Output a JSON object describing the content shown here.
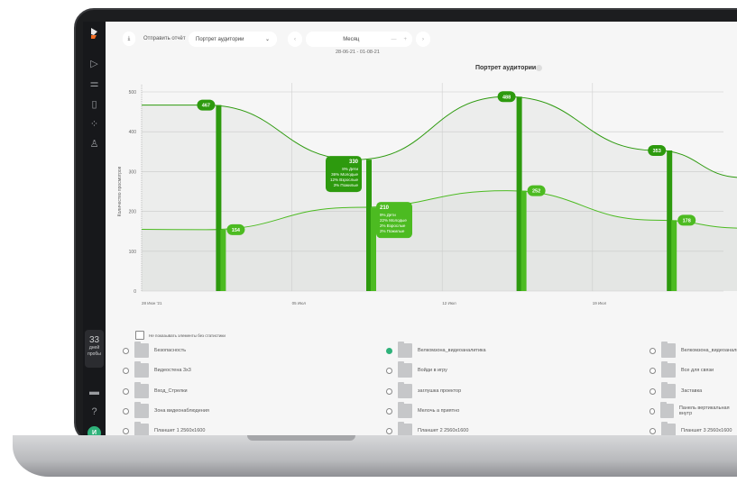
{
  "toolbar": {
    "send_report": "Отправить отчёт",
    "report_select": "Портрет аудитории",
    "period": "Месяц",
    "date_range": "28-06-21 - 01-08-21"
  },
  "sidebar": {
    "trial_days": "33",
    "trial_label": "дней пробы",
    "avatar": "И",
    "icons": [
      "logo",
      "play-icon",
      "filter-icon",
      "document-icon",
      "loading-icon",
      "user-icon",
      "monitor-icon",
      "help-icon"
    ]
  },
  "colors": {
    "dark_green": "#2d9a0e",
    "light_green": "#4cbb21",
    "accent": "#2fb27a"
  },
  "chart_data": {
    "type": "line",
    "title": "Портрет аудитории",
    "ylabel": "Количество просмотров",
    "ylim": [
      0,
      500
    ],
    "yticks": [
      "0",
      "100",
      "200",
      "300",
      "400",
      "500"
    ],
    "xticks": [
      {
        "date": "2021-06-28",
        "label": "28 Июн '21"
      },
      {
        "date": "2021-07-05",
        "label": "05 Июл"
      },
      {
        "date": "2021-07-12",
        "label": "12 Июл"
      },
      {
        "date": "2021-07-19",
        "label": "19 Июл"
      }
    ],
    "grid": true,
    "series": [
      {
        "color": "#2d9a0e",
        "points": [
          [
            "2021-06-28",
            467
          ],
          [
            "2021-07-01",
            467
          ],
          [
            "2021-07-08",
            330
          ],
          [
            "2021-07-15",
            488
          ],
          [
            "2021-07-22",
            353
          ],
          [
            "2021-07-26",
            285
          ]
        ]
      },
      {
        "color": "#4cbb21",
        "points": [
          [
            "2021-06-28",
            155
          ],
          [
            "2021-07-01",
            154
          ],
          [
            "2021-07-08",
            210
          ],
          [
            "2021-07-15",
            252
          ],
          [
            "2021-07-22",
            178
          ],
          [
            "2021-07-26",
            158
          ]
        ]
      }
    ],
    "bars": [
      {
        "date": "2021-07-01",
        "upper": 467,
        "lower": 154
      },
      {
        "date": "2021-07-08",
        "upper": 330,
        "lower": 210
      },
      {
        "date": "2021-07-15",
        "upper": 488,
        "lower": 252
      },
      {
        "date": "2021-07-22",
        "upper": 353,
        "lower": 178
      }
    ],
    "tooltips": [
      {
        "series": 0,
        "date": "2021-07-08",
        "value": "330",
        "lines": [
          "8% Дети",
          "36% Молодые",
          "12% Взрослые",
          "3% Пожилые"
        ]
      },
      {
        "series": 1,
        "date": "2021-07-08",
        "value": "210",
        "lines": [
          "9% Дети",
          "22% Молодые",
          "2% Взрослые",
          "2% Пожилые"
        ]
      }
    ]
  },
  "filter": {
    "hide_empty_label": "Не показывать элементы без статистики"
  },
  "items": [
    {
      "label": "Безопасность",
      "selected": false
    },
    {
      "label": "Велкомзона_видеоаналитика",
      "selected": true
    },
    {
      "label": "Велкомзона_видеоаналитика",
      "selected": false
    },
    {
      "label": "Видеостена 3х3",
      "selected": false
    },
    {
      "label": "Войди в игру",
      "selected": false
    },
    {
      "label": "Все для связи",
      "selected": false
    },
    {
      "label": "Вход_Стрелки",
      "selected": false
    },
    {
      "label": "заглушка проектор",
      "selected": false
    },
    {
      "label": "Заставка",
      "selected": false
    },
    {
      "label": "Зона видеонаблюдения",
      "selected": false
    },
    {
      "label": "Мелочь а приятно",
      "selected": false
    },
    {
      "label": "Панель вертикальная внутр",
      "selected": false
    },
    {
      "label": "Планшет 1 2560х1600",
      "selected": false
    },
    {
      "label": "Планшет 2 2560х1600",
      "selected": false
    },
    {
      "label": "Планшет 3 2560х1600",
      "selected": false
    }
  ]
}
